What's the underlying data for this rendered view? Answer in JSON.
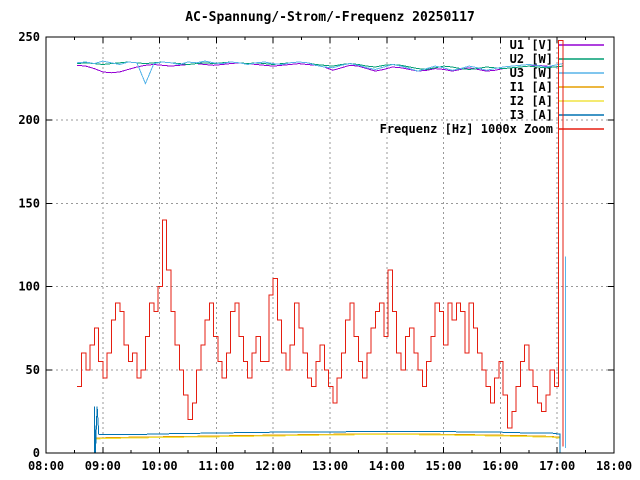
{
  "title": "AC-Spannung/-Strom/-Frequenz 20250117",
  "chart_data": {
    "type": "line",
    "title": "AC-Spannung/-Strom/-Frequenz 20250117",
    "background": "#ffffff",
    "frame_color": "#000000",
    "grid": {
      "on": true,
      "color": "#999999",
      "style": "dashed",
      "x_lines_hours": [
        9,
        10,
        11,
        12,
        13,
        14,
        15,
        16,
        17
      ],
      "y_lines_values": [
        50,
        100,
        150,
        200
      ]
    },
    "x_axis": {
      "label": "",
      "range_hours": [
        8,
        18
      ],
      "major_ticks": [
        "08:00",
        "09:00",
        "10:00",
        "11:00",
        "12:00",
        "13:00",
        "14:00",
        "15:00",
        "16:00",
        "17:00",
        "18:00"
      ],
      "minor_tick_every_hours": 0.5
    },
    "y_axis": {
      "label": "",
      "range": [
        0,
        250
      ],
      "major_tick_step": 50,
      "tick_labels": [
        "0",
        "50",
        "100",
        "150",
        "200",
        "250"
      ]
    },
    "legend_position": "top-right-inside",
    "series": [
      {
        "name": "U1",
        "label": "U1 [V]",
        "color": "#9400D3",
        "render": "line",
        "in_legend": true,
        "t0": 8.55,
        "dt": 0.15,
        "values": [
          233,
          232.5,
          231,
          229,
          228.5,
          229,
          230.5,
          232,
          233,
          233.5,
          233,
          232.5,
          233,
          233.5,
          234,
          233.5,
          233,
          233.5,
          234,
          234.5,
          234,
          233.5,
          233,
          232.5,
          233,
          233.5,
          234,
          233.5,
          233,
          232,
          230,
          231.5,
          233,
          232.5,
          231,
          229.5,
          230.5,
          232,
          231.5,
          230.5,
          229.5,
          230,
          231,
          230.5,
          229.5,
          230.5,
          231.5,
          230.5,
          229.5,
          230,
          231,
          231.5,
          232,
          232.5,
          233,
          232.5,
          232,
          232.5
        ]
      },
      {
        "name": "U2",
        "label": "U2 [W]",
        "color": "#009E73",
        "render": "line",
        "in_legend": true,
        "t0": 8.55,
        "dt": 0.15,
        "values": [
          234,
          234.5,
          234,
          233.5,
          234,
          234.5,
          235,
          234.5,
          234,
          234.5,
          235,
          234.5,
          234,
          233.5,
          234,
          234.5,
          234,
          234.5,
          235,
          234.5,
          234,
          234.5,
          234,
          233.5,
          234,
          234.5,
          235,
          234.5,
          233.5,
          233,
          232.5,
          233.5,
          234,
          233.5,
          232.5,
          232,
          233,
          233.5,
          233,
          232,
          231,
          230.5,
          231.5,
          232.5,
          232,
          231,
          230.5,
          231,
          232,
          231.5,
          231,
          231.5,
          232,
          232.5,
          232,
          231.5,
          232,
          232.5
        ]
      },
      {
        "name": "U3",
        "label": "U3 [W]",
        "color": "#56B4E9",
        "render": "line",
        "in_legend": true,
        "t0": 8.55,
        "dt": 0.15,
        "values": [
          234.5,
          235,
          234,
          235.5,
          234.5,
          233.5,
          235,
          234.5,
          222,
          234,
          235,
          234.5,
          233.5,
          235,
          234.5,
          235.5,
          234.5,
          234,
          235,
          234.5,
          233.5,
          234.5,
          235,
          234,
          233.5,
          234.5,
          235,
          234.5,
          233,
          232,
          231.5,
          233,
          234,
          233,
          231.5,
          230.5,
          232,
          233.5,
          232.5,
          231,
          229.5,
          231,
          232.5,
          231.5,
          230,
          231,
          232.5,
          231.5,
          230,
          231,
          232,
          232.5,
          233,
          233.5,
          233,
          232,
          233,
          234
        ]
      },
      {
        "name": "U3-end-artifact",
        "label": null,
        "color": "#56B4E9",
        "render": "line",
        "in_legend": false,
        "points": [
          [
            17.15,
            118
          ],
          [
            17.15,
            3
          ]
        ]
      },
      {
        "name": "I1",
        "label": "I1 [A]",
        "color": "#E69F00",
        "render": "line",
        "in_legend": true,
        "points": [
          [
            8.85,
            0
          ],
          [
            8.85,
            9
          ],
          [
            9.5,
            9.5
          ],
          [
            10.5,
            10
          ],
          [
            11.5,
            10.5
          ],
          [
            12.5,
            11
          ],
          [
            13.5,
            11.5
          ],
          [
            14.5,
            11.5
          ],
          [
            15.5,
            11
          ],
          [
            16.3,
            10.5
          ],
          [
            16.9,
            10
          ],
          [
            17.0,
            9.5
          ],
          [
            17.05,
            9.5
          ],
          [
            17.05,
            0
          ]
        ]
      },
      {
        "name": "I2",
        "label": "I2 [A]",
        "color": "#F0E442",
        "render": "line",
        "in_legend": true,
        "points": [
          [
            8.85,
            0
          ],
          [
            8.85,
            8.5
          ],
          [
            9.5,
            9
          ],
          [
            10.5,
            9.5
          ],
          [
            11.5,
            10
          ],
          [
            12.5,
            10.5
          ],
          [
            13.5,
            11
          ],
          [
            14.5,
            11
          ],
          [
            15.5,
            10.5
          ],
          [
            16.3,
            10
          ],
          [
            16.9,
            9.5
          ],
          [
            17.0,
            9
          ],
          [
            17.05,
            9
          ],
          [
            17.05,
            0
          ]
        ]
      },
      {
        "name": "I3",
        "label": "I3 [A]",
        "color": "#0072B2",
        "render": "line",
        "in_legend": true,
        "points": [
          [
            8.85,
            0
          ],
          [
            8.85,
            28
          ],
          [
            8.87,
            0
          ],
          [
            8.9,
            28
          ],
          [
            8.93,
            11
          ],
          [
            9.5,
            11
          ],
          [
            10,
            11.5
          ],
          [
            11,
            12
          ],
          [
            12,
            12.5
          ],
          [
            13,
            12.5
          ],
          [
            13.5,
            13
          ],
          [
            14,
            13
          ],
          [
            15,
            13
          ],
          [
            15.5,
            12.5
          ],
          [
            16,
            12.5
          ],
          [
            16.5,
            12
          ],
          [
            16.9,
            12
          ],
          [
            17.0,
            11.5
          ],
          [
            17.05,
            11.5
          ],
          [
            17.05,
            0
          ]
        ]
      },
      {
        "name": "Frequenz",
        "label": "Frequenz [Hz] 1000x Zoom",
        "color": "#E51E10",
        "render": "step",
        "in_legend": true,
        "t0": 8.55,
        "dt": 0.075,
        "values": [
          40,
          60,
          50,
          65,
          75,
          55,
          45,
          60,
          80,
          90,
          85,
          65,
          55,
          60,
          45,
          50,
          70,
          90,
          85,
          100,
          140,
          110,
          85,
          65,
          50,
          35,
          20,
          30,
          50,
          65,
          80,
          90,
          70,
          55,
          45,
          60,
          85,
          90,
          70,
          55,
          45,
          60,
          70,
          55,
          55,
          95,
          105,
          80,
          60,
          50,
          65,
          90,
          75,
          60,
          45,
          40,
          55,
          65,
          50,
          40,
          30,
          45,
          60,
          80,
          90,
          70,
          55,
          45,
          60,
          75,
          85,
          90,
          70,
          110,
          85,
          60,
          50,
          70,
          75,
          60,
          50,
          40,
          55,
          70,
          90,
          85,
          65,
          90,
          80,
          90,
          85,
          60,
          90,
          75,
          60,
          50,
          40,
          30,
          45,
          55,
          35,
          15,
          25,
          40,
          55,
          65,
          50,
          40,
          30,
          25,
          35,
          50,
          40,
          248,
          4
        ]
      }
    ]
  }
}
